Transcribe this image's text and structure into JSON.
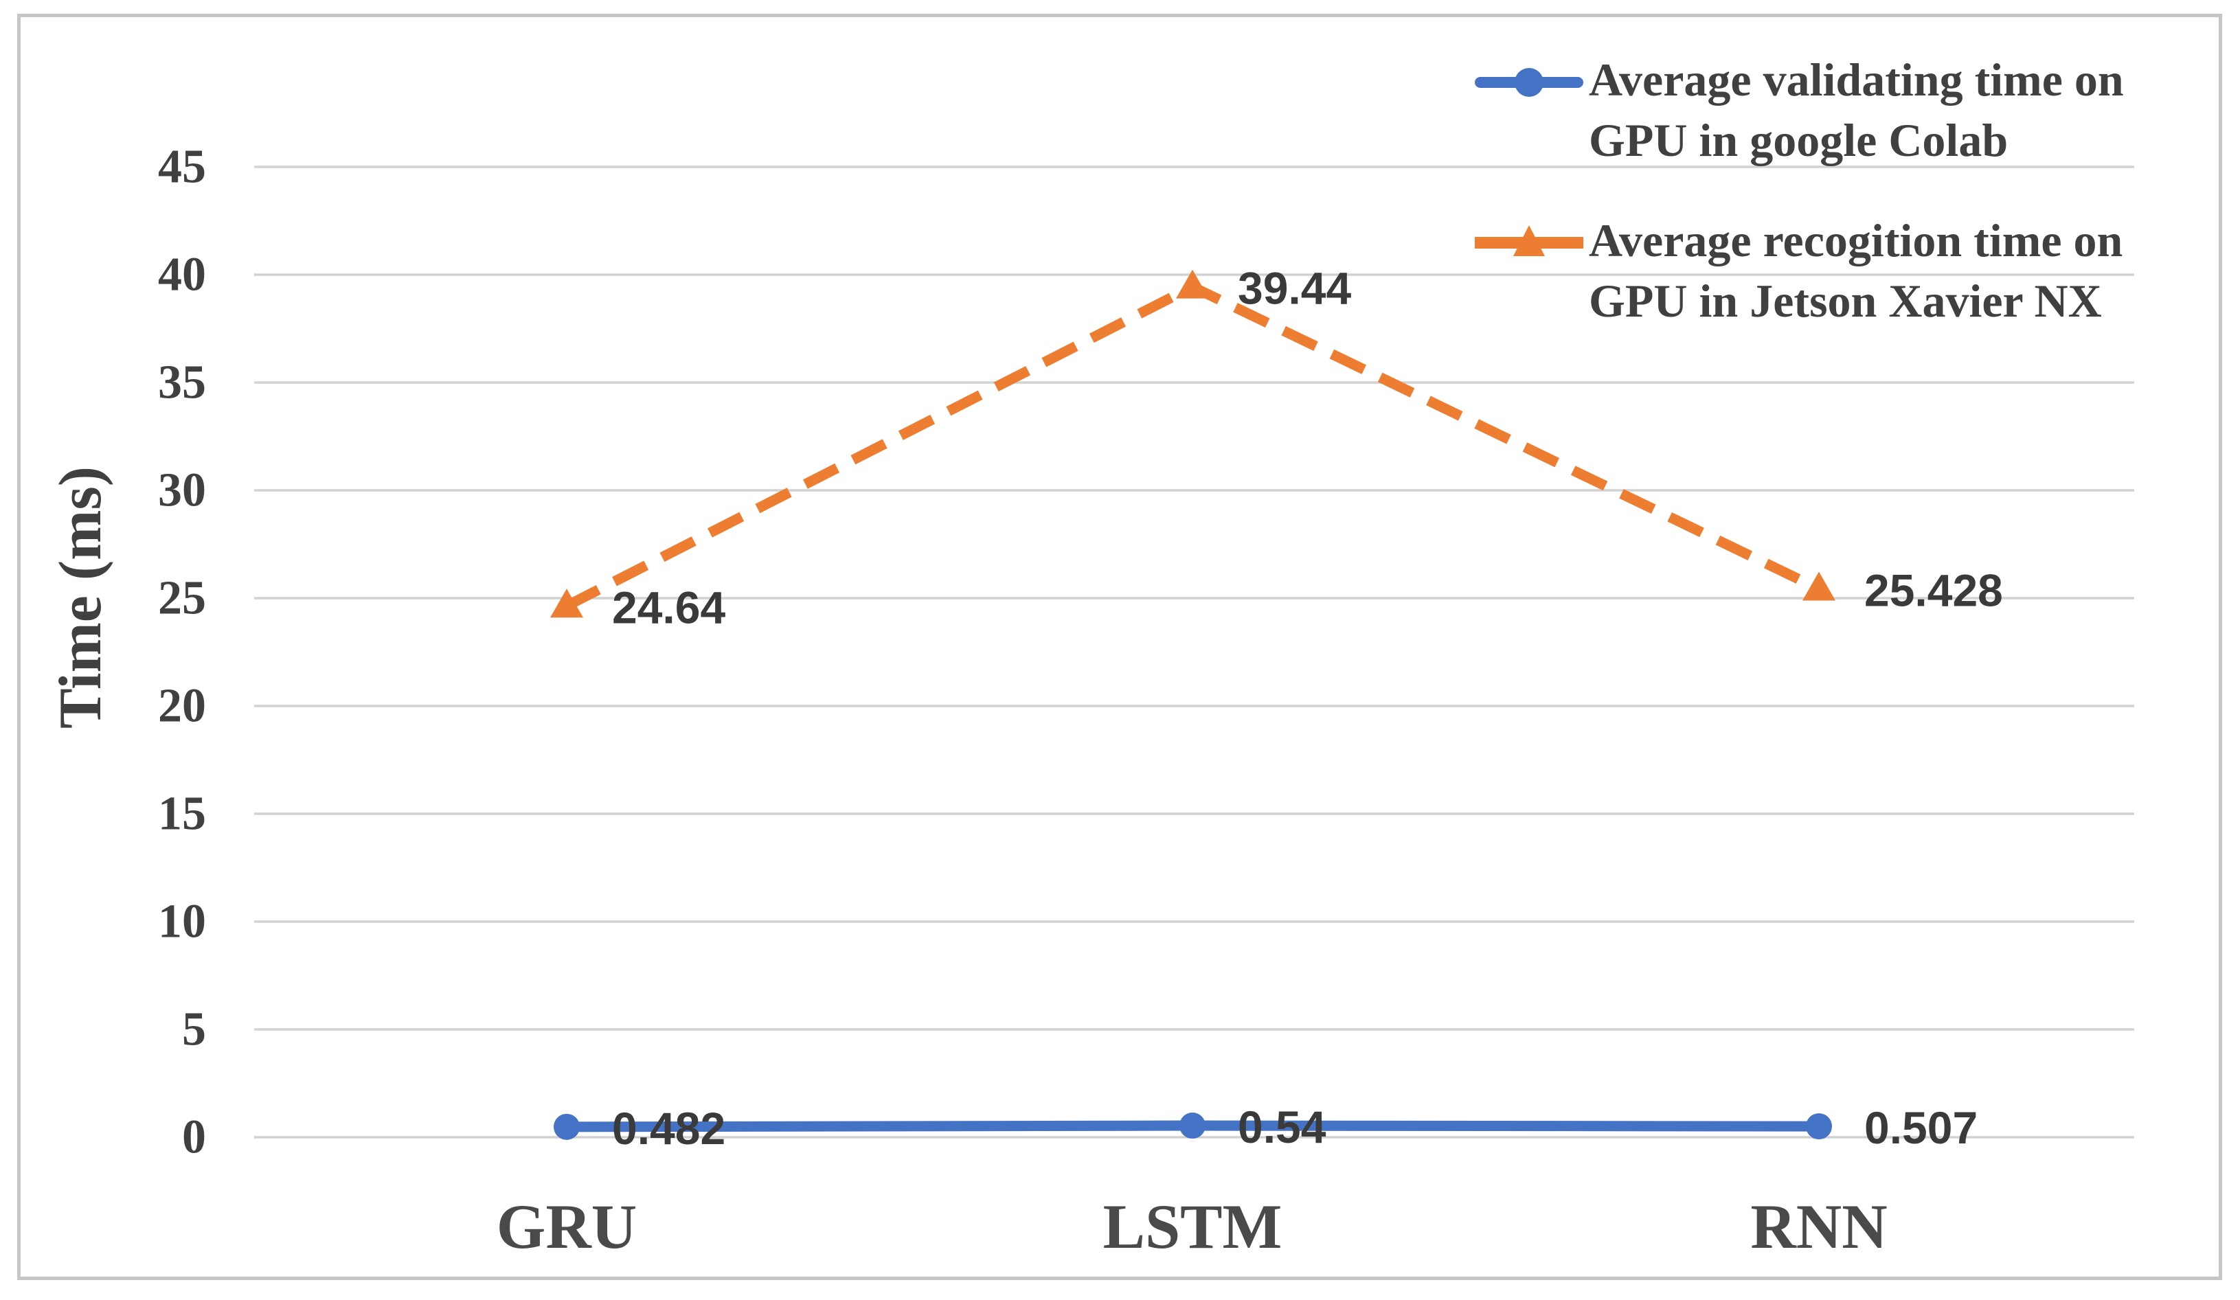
{
  "chart_data": {
    "type": "line",
    "title": "",
    "xlabel": "",
    "ylabel": "Time (ms)",
    "categories": [
      "GRU",
      "LSTM",
      "RNN"
    ],
    "yticks": [
      0,
      5,
      10,
      15,
      20,
      25,
      30,
      35,
      40,
      45
    ],
    "ylim": [
      0,
      45
    ],
    "grid": "horizontal",
    "legend_position": "top-right",
    "series": [
      {
        "name": "Average validating time on GPU in google Colab",
        "name_lines": [
          "Average validating time on",
          "GPU in google Colab"
        ],
        "color": "#4472C4",
        "marker": "circle",
        "line_style": "solid",
        "values": [
          0.482,
          0.54,
          0.507
        ],
        "data_labels": [
          "0.482",
          "0.54",
          "0.507"
        ]
      },
      {
        "name": "Average recogition time on GPU in Jetson Xavier NX",
        "name_lines": [
          "Average recogition time on",
          "GPU in Jetson Xavier NX"
        ],
        "color": "#ED7D31",
        "marker": "triangle",
        "line_style": "dashed",
        "values": [
          24.64,
          39.44,
          25.428
        ],
        "data_labels": [
          "24.64",
          "39.44",
          "25.428"
        ]
      }
    ],
    "colors": {
      "blue_series": "#4472C4",
      "orange_series": "#ED7D31",
      "axis_text": "#404040",
      "data_label_text": "#3A3A3A",
      "gridline": "#D2D2D2",
      "frame_border": "#C6C6C6",
      "background": "#FFFFFF"
    }
  }
}
